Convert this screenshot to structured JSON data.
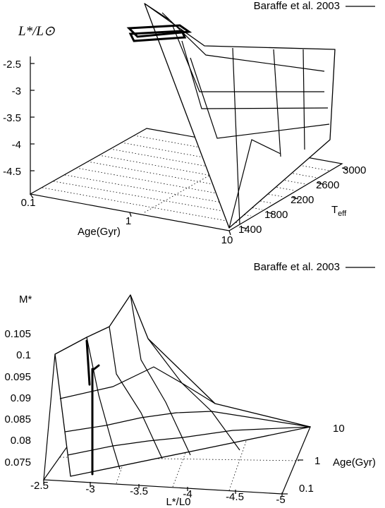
{
  "chart_data": [
    {
      "type": "surface3d",
      "legend": {
        "label": "Baraffe et al. 2003",
        "placement": "top-right"
      },
      "zlabel": "L*/L⊙",
      "xlabel": "Age(Gyr)",
      "ylabel": "Teff",
      "ztick_labels": [
        "-2.5",
        "-3",
        "-3.5",
        "-4",
        "-4.5"
      ],
      "xtick_labels": [
        "0.1",
        "1",
        "10"
      ],
      "ytick_labels": [
        "1400",
        "1800",
        "2200",
        "2600",
        "3000"
      ],
      "x_scale": "log",
      "xlim": [
        0.1,
        10
      ],
      "ylim": [
        1400,
        3000
      ],
      "zlim": [
        -5,
        -2.5
      ],
      "grid": true
    },
    {
      "type": "surface3d",
      "legend": {
        "label": "Baraffe et al. 2003",
        "placement": "top-right"
      },
      "zlabel": "M*",
      "xlabel": "L*/L0",
      "ylabel": "Age(Gyr)",
      "ztick_labels": [
        "0.105",
        "0.1",
        "0.095",
        "0.09",
        "0.085",
        "0.08",
        "0.075"
      ],
      "xtick_labels": [
        "-2.5",
        "-3",
        "-3.5",
        "-4",
        "-4.5",
        "-5"
      ],
      "ytick_labels": [
        "10",
        "1",
        "0.1"
      ],
      "y_scale": "log",
      "xlim": [
        -5,
        -2.5
      ],
      "ylim": [
        0.1,
        10
      ],
      "zlim": [
        0.072,
        0.108
      ],
      "grid": true
    }
  ]
}
